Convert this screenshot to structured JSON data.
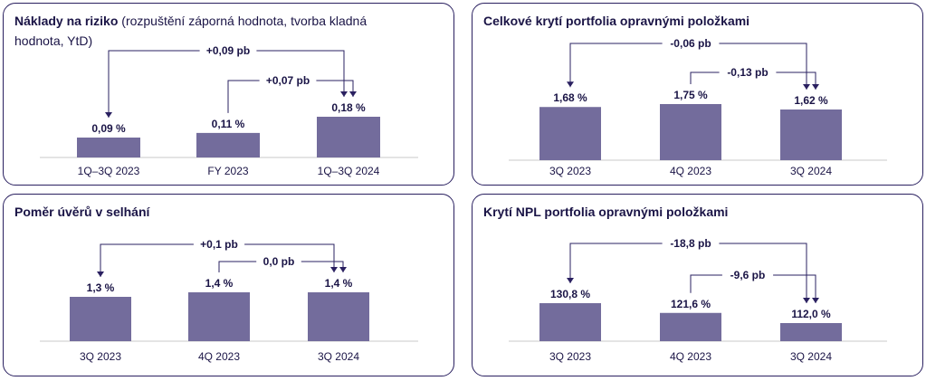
{
  "colors": {
    "bar": "#736c9c",
    "frame": "#2a2060",
    "text": "#1a1446",
    "axis": "#c8c8c8"
  },
  "chart_data": [
    {
      "type": "bar",
      "title": "Náklady na riziko",
      "subtitle": "(rozpuštění záporná hodnota, tvorba kladná hodnota, YtD)",
      "categories": [
        "1Q–3Q 2023",
        "FY 2023",
        "1Q–3Q 2024"
      ],
      "values": [
        0.09,
        0.11,
        0.18
      ],
      "value_labels": [
        "0,09 %",
        "0,11 %",
        "0,18 %"
      ],
      "annotations": [
        {
          "from": 0,
          "to": 2,
          "label": "+0,09 pb"
        },
        {
          "from": 1,
          "to": 2,
          "label": "+0,07 pb"
        }
      ]
    },
    {
      "type": "bar",
      "title": "Celkové krytí portfolia opravnými položkami",
      "categories": [
        "3Q 2023",
        "4Q 2023",
        "3Q 2024"
      ],
      "values": [
        1.68,
        1.75,
        1.62
      ],
      "value_labels": [
        "1,68 %",
        "1,75 %",
        "1,62 %"
      ],
      "annotations": [
        {
          "from": 0,
          "to": 2,
          "label": "-0,06 pb"
        },
        {
          "from": 1,
          "to": 2,
          "label": "-0,13 pb"
        }
      ]
    },
    {
      "type": "bar",
      "title": "Poměr úvěrů v selhání",
      "categories": [
        "3Q 2023",
        "4Q 2023",
        "3Q 2024"
      ],
      "values": [
        1.3,
        1.4,
        1.4
      ],
      "value_labels": [
        "1,3 %",
        "1,4 %",
        "1,4 %"
      ],
      "annotations": [
        {
          "from": 0,
          "to": 2,
          "label": "+0,1 pb"
        },
        {
          "from": 1,
          "to": 2,
          "label": "0,0 pb"
        }
      ]
    },
    {
      "type": "bar",
      "title": "Krytí NPL portfolia opravnými položkami",
      "categories": [
        "3Q 2023",
        "4Q 2023",
        "3Q 2024"
      ],
      "values": [
        130.8,
        121.6,
        112.0
      ],
      "value_labels": [
        "130,8 %",
        "121,6 %",
        "112,0 %"
      ],
      "annotations": [
        {
          "from": 0,
          "to": 2,
          "label": "-18,8 pb"
        },
        {
          "from": 1,
          "to": 2,
          "label": "-9,6 pb"
        }
      ]
    }
  ]
}
